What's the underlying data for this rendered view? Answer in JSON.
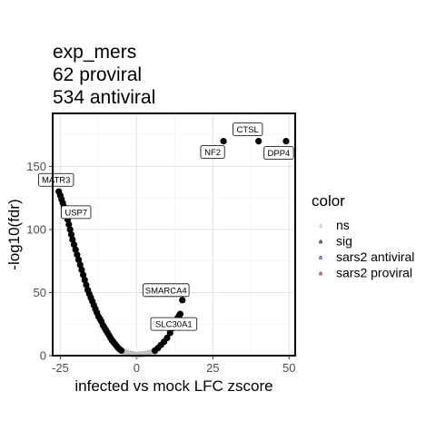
{
  "chart_data": {
    "type": "scatter",
    "title_lines": [
      "exp_mers",
      "62 proviral",
      "534 antiviral"
    ],
    "xlabel": "infected vs mock LFC zscore",
    "ylabel": "-log10(fdr)",
    "xlim": [
      -27.5,
      52
    ],
    "ylim": [
      0,
      192
    ],
    "xticks": [
      -25,
      0,
      25,
      50
    ],
    "yticks": [
      0,
      50,
      100,
      150
    ],
    "grid": true,
    "legend": {
      "title": "color",
      "position": "right",
      "entries": [
        {
          "label": "ns",
          "color": "#bebebe"
        },
        {
          "label": "sig",
          "color": "#000000"
        },
        {
          "label": "sars2 antiviral",
          "color": "#3b3b8f"
        },
        {
          "label": "sars2 proviral",
          "color": "#8b1a3a"
        }
      ]
    },
    "series": [
      {
        "group": "ns",
        "color": "#bebebe",
        "points": [
          [
            -3,
            2
          ],
          [
            -2,
            1.5
          ],
          [
            -1,
            1
          ],
          [
            0,
            0.5
          ],
          [
            1,
            0.8
          ],
          [
            2,
            1.2
          ],
          [
            3,
            1.5
          ],
          [
            4,
            2
          ],
          [
            5,
            2.5
          ],
          [
            -4,
            3
          ],
          [
            6,
            3
          ]
        ]
      },
      {
        "group": "sig",
        "color": "#000000",
        "points": [
          [
            -25.5,
            130
          ],
          [
            -25,
            127
          ],
          [
            -24.6,
            124
          ],
          [
            -24.2,
            121
          ],
          [
            -23.8,
            118
          ],
          [
            -23.4,
            115
          ],
          [
            -23,
            112
          ],
          [
            -22.6,
            108
          ],
          [
            -22.2,
            104
          ],
          [
            -21.8,
            100
          ],
          [
            -21.4,
            96
          ],
          [
            -21,
            92
          ],
          [
            -20.5,
            88
          ],
          [
            -20,
            84
          ],
          [
            -19.5,
            80
          ],
          [
            -19,
            76
          ],
          [
            -18.5,
            72
          ],
          [
            -18,
            68
          ],
          [
            -17.5,
            64
          ],
          [
            -17,
            60
          ],
          [
            -16.5,
            56
          ],
          [
            -16,
            52
          ],
          [
            -15.5,
            49
          ],
          [
            -15,
            46
          ],
          [
            -14.5,
            43
          ],
          [
            -14,
            40
          ],
          [
            -13.5,
            37
          ],
          [
            -13,
            34
          ],
          [
            -12.5,
            31
          ],
          [
            -12,
            29
          ],
          [
            -11.5,
            27
          ],
          [
            -11,
            24
          ],
          [
            -10.5,
            22
          ],
          [
            -10,
            20
          ],
          [
            -9.5,
            18
          ],
          [
            -9,
            16
          ],
          [
            -8.5,
            14
          ],
          [
            -8,
            12
          ],
          [
            -7.5,
            10.5
          ],
          [
            -7,
            9
          ],
          [
            -6.5,
            7.5
          ],
          [
            -6,
            6
          ],
          [
            -5.5,
            5
          ],
          [
            -5,
            4
          ],
          [
            6,
            4
          ],
          [
            7,
            6
          ],
          [
            8,
            8.5
          ],
          [
            9,
            11
          ],
          [
            10,
            14
          ],
          [
            11,
            18
          ],
          [
            12,
            22
          ],
          [
            12.5,
            25
          ],
          [
            13,
            28
          ],
          [
            13.5,
            30
          ],
          [
            14,
            32
          ],
          [
            14.3,
            33
          ],
          [
            15,
            44
          ],
          [
            28.5,
            170
          ],
          [
            40,
            170
          ],
          [
            49,
            170
          ]
        ]
      }
    ],
    "annotations": [
      {
        "text": "MATR3",
        "x": -25.5,
        "y": 130
      },
      {
        "text": "USP7",
        "x": -23.4,
        "y": 118
      },
      {
        "text": "CTSL",
        "x": 40,
        "y": 170
      },
      {
        "text": "NF2",
        "x": 28.5,
        "y": 170
      },
      {
        "text": "DPP4",
        "x": 49,
        "y": 170
      },
      {
        "text": "SMARCA4",
        "x": 15,
        "y": 44
      },
      {
        "text": "SLC30A1",
        "x": 14.3,
        "y": 33
      }
    ]
  }
}
